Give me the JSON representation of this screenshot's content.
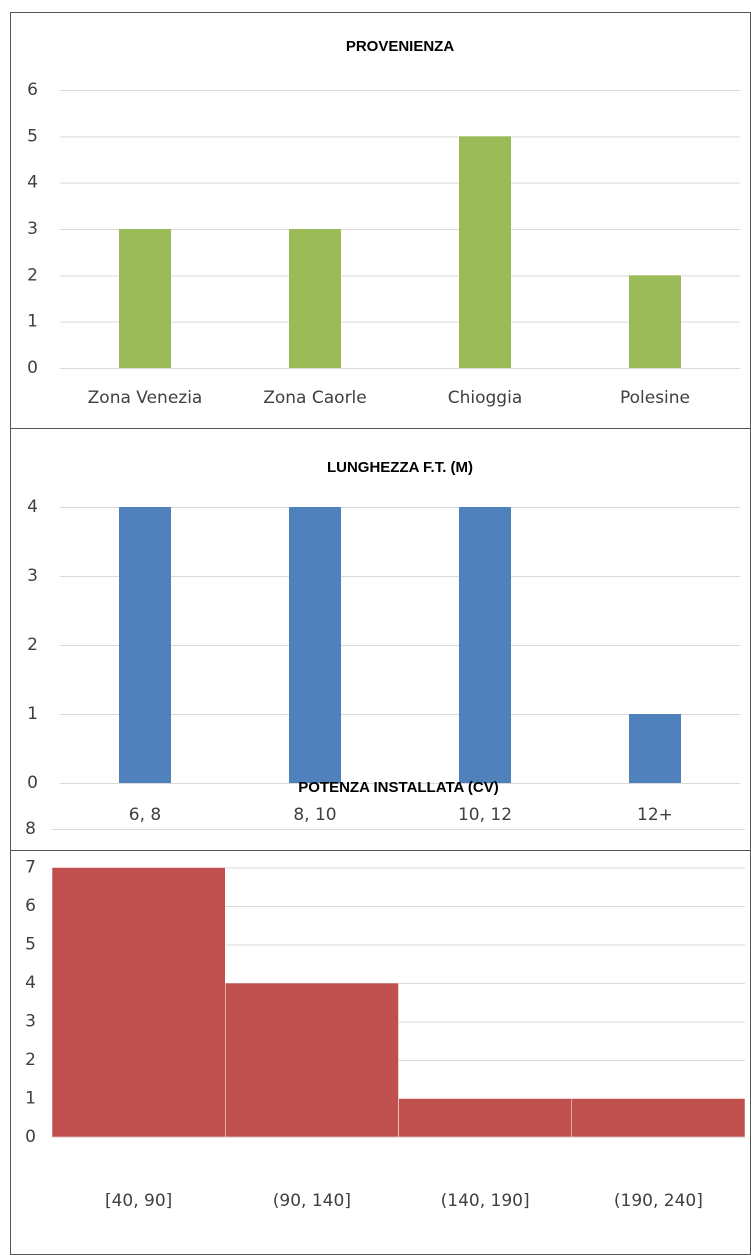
{
  "chart_data": [
    {
      "type": "bar",
      "title": "PROVENIENZA",
      "categories": [
        "Zona Venezia",
        "Zona Caorle",
        "Chioggia",
        "Polesine"
      ],
      "values": [
        3,
        3,
        5,
        2
      ],
      "color": "#9bbb59",
      "ylim": [
        0,
        6
      ],
      "yticks": [
        0,
        1,
        2,
        3,
        4,
        5,
        6
      ],
      "grid": true
    },
    {
      "type": "bar",
      "title": "LUNGHEZZA F.T. (M)",
      "categories": [
        "6, 8",
        "8, 10",
        "10, 12",
        "12+"
      ],
      "values": [
        4,
        4,
        4,
        1
      ],
      "color": "#4f81bd",
      "ylim": [
        0,
        4
      ],
      "yticks": [
        0,
        1,
        2,
        3,
        4
      ],
      "grid": true
    },
    {
      "type": "histogram",
      "title": "POTENZA INSTALLATA (CV)",
      "categories": [
        "[40, 90]",
        "(90, 140]",
        "(140, 190]",
        "(190, 240]"
      ],
      "values": [
        7,
        4,
        1,
        1
      ],
      "color": "#c0504d",
      "ylim": [
        0,
        8
      ],
      "yticks": [
        0,
        1,
        2,
        3,
        4,
        5,
        6,
        7,
        8
      ],
      "grid": true
    }
  ]
}
